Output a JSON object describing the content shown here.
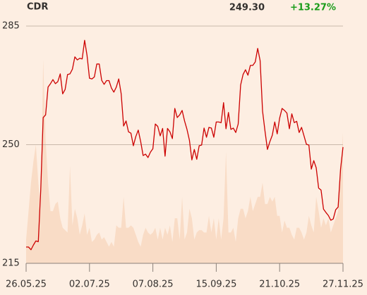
{
  "chart_data": {
    "type": "line",
    "ticker": "CDR",
    "last_price": "249.30",
    "change": "+13.27%",
    "xlim": [
      0,
      130
    ],
    "xticks": [
      {
        "value": 0,
        "label": "26.05.25"
      },
      {
        "value": 26,
        "label": "02.07.25"
      },
      {
        "value": 52,
        "label": "07.08.25"
      },
      {
        "value": 78,
        "label": "15.09.25"
      },
      {
        "value": 104,
        "label": "21.10.25"
      },
      {
        "value": 130,
        "label": "27.11.25"
      }
    ],
    "ylim": [
      215,
      285
    ],
    "yticks": [
      215,
      250,
      285
    ],
    "grid": true,
    "series": [
      {
        "color": "#cc0000",
        "values": [
          219.8,
          219.8,
          219,
          220.4,
          221.6,
          221.4,
          236.6,
          258,
          258.8,
          267,
          268,
          269.2,
          268,
          268.6,
          270.9,
          265,
          266.3,
          270.7,
          270.9,
          272.3,
          275.9,
          275,
          275.5,
          275.3,
          280.8,
          276.3,
          269.6,
          269.4,
          270,
          273.8,
          273.8,
          269,
          267.8,
          268.9,
          268.9,
          266.7,
          265.5,
          267,
          269.4,
          265,
          255.5,
          257,
          253.8,
          253.4,
          249.7,
          252.4,
          254.3,
          250.9,
          246.8,
          247.2,
          246.2,
          247.8,
          248.8,
          256.1,
          255.4,
          252.6,
          254.8,
          246.6,
          254.8,
          253.8,
          251.8,
          260.7,
          258,
          258.8,
          260.1,
          257,
          254.5,
          251.3,
          245.5,
          248.6,
          245.7,
          249.7,
          249.9,
          254.9,
          252.2,
          255.1,
          254.9,
          252.2,
          256.7,
          256.7,
          256.5,
          262.4,
          254.7,
          259.5,
          254.5,
          254.9,
          253.6,
          256.1,
          267.6,
          270.7,
          272.1,
          270.5,
          273.4,
          273.4,
          274.4,
          278.4,
          274.8,
          259.9,
          254,
          248.6,
          250.9,
          252.8,
          256.7,
          253.2,
          257.8,
          260.7,
          260.1,
          259.3,
          254.7,
          259.1,
          256.5,
          256.9,
          253.6,
          255.1,
          252.6,
          250.1,
          249.9,
          242.8,
          245.3,
          243.2,
          237.2,
          236.6,
          231,
          230,
          229.1,
          227.7,
          228.1,
          230.8,
          231.6,
          242.8,
          249.3
        ]
      }
    ],
    "volume": {
      "color": "#f9dcc6",
      "vlim": [
        0,
        100
      ],
      "values": [
        10,
        22,
        34,
        43,
        50,
        34,
        22,
        86,
        52,
        34,
        22,
        22,
        25,
        26,
        19,
        15,
        14,
        13,
        41,
        16,
        23,
        19,
        12,
        16,
        21,
        12,
        15,
        9,
        10,
        12,
        13,
        10,
        11,
        9,
        7,
        9,
        7,
        16,
        15,
        15,
        28,
        15,
        15,
        16,
        15,
        12,
        9,
        7,
        12,
        15,
        13,
        12,
        13,
        15,
        10,
        15,
        10,
        15,
        12,
        16,
        9,
        19,
        19,
        10,
        28,
        10,
        13,
        23,
        19,
        10,
        13,
        14,
        14,
        13,
        13,
        20,
        13,
        19,
        10,
        19,
        10,
        19,
        47,
        13,
        13,
        15,
        9,
        19,
        23,
        23,
        19,
        22,
        28,
        22,
        25,
        28,
        28,
        34,
        25,
        25,
        28,
        26,
        28,
        20,
        20,
        13,
        18,
        15,
        15,
        12,
        10,
        15,
        15,
        13,
        10,
        13,
        20,
        16,
        13,
        28,
        22,
        15,
        19,
        16,
        19,
        13,
        16,
        19,
        22,
        37,
        55
      ]
    }
  }
}
